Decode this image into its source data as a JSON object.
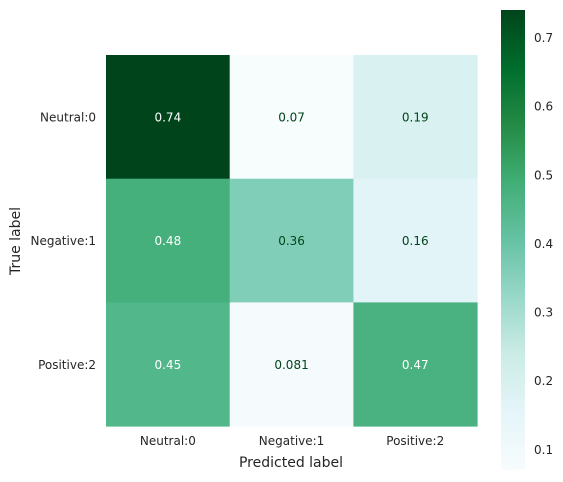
{
  "chart_data": {
    "type": "heatmap",
    "title": "",
    "xlabel": "Predicted label",
    "ylabel": "True label",
    "x_categories": [
      "Neutral:0",
      "Negative:1",
      "Positive:2"
    ],
    "y_categories": [
      "Neutral:0",
      "Negative:1",
      "Positive:2"
    ],
    "values": [
      [
        0.74,
        0.07,
        0.19
      ],
      [
        0.48,
        0.36,
        0.16
      ],
      [
        0.45,
        0.081,
        0.47
      ]
    ],
    "value_labels": [
      [
        "0.74",
        "0.07",
        "0.19"
      ],
      [
        "0.48",
        "0.36",
        "0.16"
      ],
      [
        "0.45",
        "0.081",
        "0.47"
      ]
    ],
    "colormap": "BuGn",
    "colorbar": {
      "range": [
        0.07,
        0.74
      ],
      "ticks": [
        0.1,
        0.2,
        0.3,
        0.4,
        0.5,
        0.6,
        0.7
      ],
      "tick_labels": [
        "0.1",
        "0.2",
        "0.3",
        "0.4",
        "0.5",
        "0.6",
        "0.7"
      ]
    },
    "grid": false,
    "legend": "colorbar-right"
  }
}
